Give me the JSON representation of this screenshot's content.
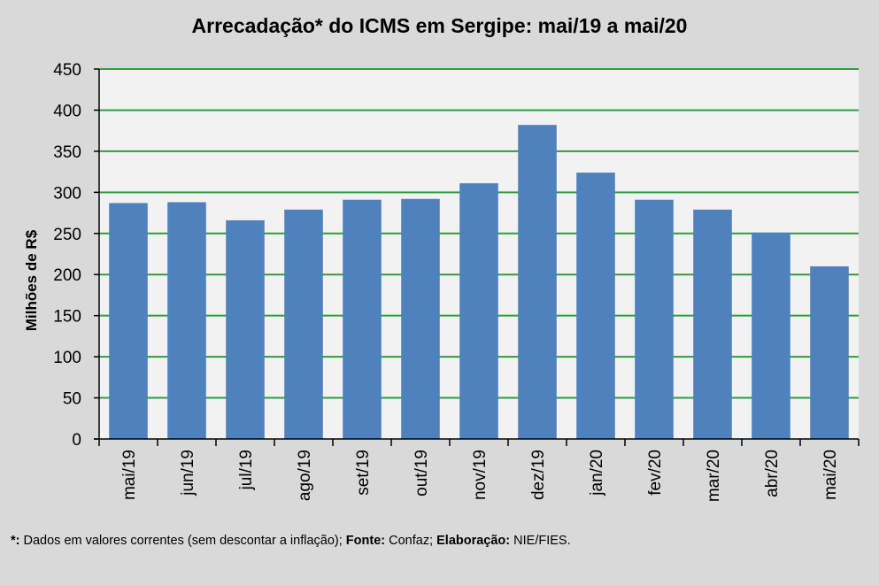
{
  "colors": {
    "background": "#d9d9d9",
    "plot_area": "#f2f2f2",
    "bar": "#4f81bd",
    "gridline": "#2e9e3e",
    "axis": "#000000"
  },
  "chart_data": {
    "type": "bar",
    "title": "Arrecadação* do ICMS em Sergipe: mai/19 a mai/20",
    "xlabel": "",
    "ylabel": "Milhões de R$",
    "categories": [
      "mai/19",
      "jun/19",
      "jul/19",
      "ago/19",
      "set/19",
      "out/19",
      "nov/19",
      "dez/19",
      "jan/20",
      "fev/20",
      "mar/20",
      "abr/20",
      "mai/20"
    ],
    "values": [
      287,
      288,
      266,
      279,
      291,
      292,
      311,
      382,
      324,
      291,
      279,
      251,
      210
    ],
    "ylim": [
      0,
      450
    ],
    "yticks": [
      "0",
      "50",
      "100",
      "150",
      "200",
      "250",
      "300",
      "350",
      "400",
      "450"
    ],
    "grid": true,
    "legend": "none"
  },
  "footnote": {
    "star_label": "*:",
    "star_text": " Dados em valores correntes (sem descontar a inflação);",
    "source_label": " Fonte:",
    "source_text": " Confaz;",
    "credit_label": " Elaboração:",
    "credit_text": " NIE/FIES."
  }
}
